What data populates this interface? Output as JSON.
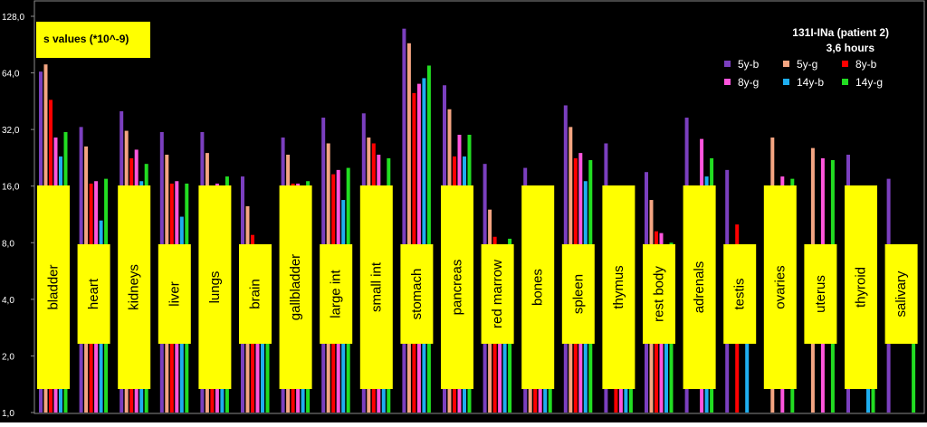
{
  "chart_data": {
    "type": "bar",
    "title": "131I-INa (patient 2)",
    "subtitle": "3,6 hours",
    "ylabel": "s values (*10^-9)",
    "yscale": "log2",
    "ylim": [
      1,
      128
    ],
    "yticks": [
      "1,0",
      "2,0",
      "4,0",
      "8,0",
      "16,0",
      "32,0",
      "64,0",
      "128,0"
    ],
    "grid": false,
    "legend_position": "top-right",
    "categories": [
      "bladder",
      "heart",
      "kidneys",
      "liver",
      "lungs",
      "brain",
      "gallbladder",
      "large int",
      "small int",
      "stomach",
      "pancreas",
      "red marrow",
      "bones",
      "spleen",
      "thymus",
      "rest body",
      "adrenals",
      "testis",
      "ovaries",
      "uterus",
      "thyroid",
      "salivary"
    ],
    "series": [
      {
        "name": "5y-b",
        "color": "#7b3fbf",
        "values": [
          65,
          33,
          40,
          31,
          31,
          18,
          29,
          37,
          39,
          110,
          55,
          21,
          20,
          43,
          27,
          19,
          37,
          19.5,
          null,
          null,
          23.5,
          17.5
        ]
      },
      {
        "name": "5y-g",
        "color": "#f4a582",
        "values": [
          71,
          26,
          31.5,
          23.5,
          24,
          12.5,
          23.5,
          27,
          29,
          92,
          41,
          12,
          15,
          33,
          null,
          13.5,
          null,
          null,
          29,
          25.5,
          null,
          null
        ]
      },
      {
        "name": "8y-b",
        "color": "#ff0000",
        "values": [
          46,
          16.5,
          22.5,
          16.5,
          16,
          8.8,
          16.5,
          18.5,
          27,
          50,
          23,
          8.6,
          10.5,
          22.5,
          13.5,
          9.2,
          null,
          10,
          null,
          null,
          null,
          null
        ]
      },
      {
        "name": "8y-g",
        "color": "#ff55dd",
        "values": [
          29,
          17,
          25,
          17,
          16.5,
          7.8,
          16.5,
          19.5,
          23.5,
          56,
          30,
          7.8,
          9.5,
          24,
          12.5,
          9,
          28.5,
          null,
          18,
          22.5,
          null,
          null
        ]
      },
      {
        "name": "14y-b",
        "color": "#1eaef0",
        "values": [
          23,
          10.5,
          17,
          11,
          10.8,
          5,
          11.5,
          13.5,
          15.5,
          60,
          23,
          6.5,
          6.8,
          17,
          7.8,
          5,
          18,
          6,
          null,
          null,
          5.5,
          null
        ]
      },
      {
        "name": "14y-g",
        "color": "#22dd22",
        "values": [
          31,
          17.5,
          21,
          16.5,
          18,
          6,
          17,
          20,
          22.5,
          70,
          30,
          8.4,
          8.8,
          22,
          12,
          8,
          22.5,
          null,
          17.5,
          22,
          8.2,
          6.1
        ]
      }
    ]
  }
}
